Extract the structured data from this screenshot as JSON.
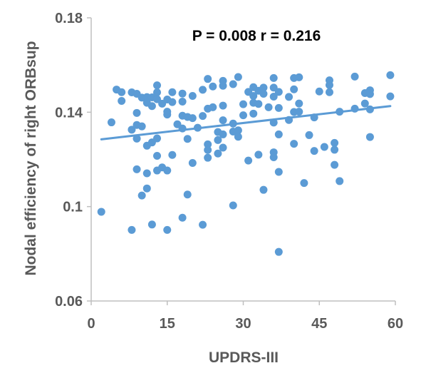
{
  "chart_data": {
    "type": "scatter",
    "title": "",
    "annotation": "P = 0.008 r = 0.216",
    "xlabel": "UPDRS-III",
    "ylabel": "Nodal efficiency of right ORBsup",
    "xlim": [
      0,
      60
    ],
    "ylim": [
      0.06,
      0.18
    ],
    "x_ticks": [
      0,
      15,
      30,
      45,
      60
    ],
    "y_ticks": [
      0.06,
      0.1,
      0.14,
      0.18
    ],
    "x_tick_labels": [
      "0",
      "15",
      "30",
      "45",
      "60"
    ],
    "y_tick_labels": [
      "0.06",
      "0.1",
      "0.14",
      "0.18"
    ],
    "grid": false,
    "marker_color": "#5B9BD5",
    "trendline": {
      "x": [
        2,
        59
      ],
      "y": [
        0.1285,
        0.1426
      ],
      "color": "#5B9BD5"
    },
    "points": [
      [
        2,
        0.0978
      ],
      [
        4,
        0.1357
      ],
      [
        5,
        0.1496
      ],
      [
        6,
        0.1485
      ],
      [
        6,
        0.1448
      ],
      [
        8,
        0.1484
      ],
      [
        8,
        0.1326
      ],
      [
        8,
        0.0901
      ],
      [
        9,
        0.1478
      ],
      [
        9,
        0.1397
      ],
      [
        9,
        0.1346
      ],
      [
        9,
        0.1288
      ],
      [
        9,
        0.1158
      ],
      [
        10,
        0.1462
      ],
      [
        10,
        0.134
      ],
      [
        10,
        0.1047
      ],
      [
        11,
        0.1464
      ],
      [
        11,
        0.144
      ],
      [
        11,
        0.1258
      ],
      [
        11,
        0.1141
      ],
      [
        11,
        0.1077
      ],
      [
        12,
        0.1463
      ],
      [
        12,
        0.1426
      ],
      [
        12,
        0.1272
      ],
      [
        12,
        0.0924
      ],
      [
        13,
        0.1514
      ],
      [
        13,
        0.1484
      ],
      [
        13,
        0.1455
      ],
      [
        13,
        0.1289
      ],
      [
        13,
        0.1215
      ],
      [
        13,
        0.1153
      ],
      [
        14,
        0.1436
      ],
      [
        14,
        0.1166
      ],
      [
        15,
        0.1454
      ],
      [
        15,
        0.1402
      ],
      [
        15,
        0.139
      ],
      [
        15,
        0.1153
      ],
      [
        15,
        0.0901
      ],
      [
        16,
        0.1485
      ],
      [
        16,
        0.1443
      ],
      [
        16,
        0.1219
      ],
      [
        17,
        0.1349
      ],
      [
        18,
        0.1479
      ],
      [
        18,
        0.1445
      ],
      [
        18,
        0.1385
      ],
      [
        18,
        0.1331
      ],
      [
        18,
        0.0953
      ],
      [
        19,
        0.138
      ],
      [
        19,
        0.1287
      ],
      [
        19,
        0.1051
      ],
      [
        20,
        0.1469
      ],
      [
        20,
        0.1375
      ],
      [
        20,
        0.1185
      ],
      [
        21,
        0.1334
      ],
      [
        22,
        0.1495
      ],
      [
        22,
        0.1384
      ],
      [
        22,
        0.0923
      ],
      [
        23,
        0.1541
      ],
      [
        23,
        0.1415
      ],
      [
        23,
        0.1264
      ],
      [
        23,
        0.124
      ],
      [
        23,
        0.1207
      ],
      [
        24,
        0.1509
      ],
      [
        24,
        0.1421
      ],
      [
        25,
        0.1316
      ],
      [
        25,
        0.1282
      ],
      [
        25,
        0.1225
      ],
      [
        26,
        0.1533
      ],
      [
        26,
        0.1512
      ],
      [
        26,
        0.1428
      ],
      [
        26,
        0.1366
      ],
      [
        26,
        0.1306
      ],
      [
        26,
        0.125
      ],
      [
        28,
        0.1519
      ],
      [
        28,
        0.1352
      ],
      [
        28,
        0.1318
      ],
      [
        28,
        0.1005
      ],
      [
        29,
        0.1549
      ],
      [
        29,
        0.1323
      ],
      [
        29,
        0.1296
      ],
      [
        30,
        0.1434
      ],
      [
        30,
        0.1387
      ],
      [
        31,
        0.1486
      ],
      [
        31,
        0.1195
      ],
      [
        32,
        0.1506
      ],
      [
        32,
        0.1469
      ],
      [
        32,
        0.144
      ],
      [
        32,
        0.1394
      ],
      [
        33,
        0.1491
      ],
      [
        33,
        0.1435
      ],
      [
        33,
        0.122
      ],
      [
        34,
        0.1504
      ],
      [
        34,
        0.1478
      ],
      [
        34,
        0.1071
      ],
      [
        35,
        0.1421
      ],
      [
        36,
        0.1545
      ],
      [
        36,
        0.1504
      ],
      [
        36,
        0.1466
      ],
      [
        36,
        0.1356
      ],
      [
        36,
        0.123
      ],
      [
        36,
        0.1209
      ],
      [
        37,
        0.1486
      ],
      [
        37,
        0.1418
      ],
      [
        37,
        0.1306
      ],
      [
        37,
        0.1147
      ],
      [
        37,
        0.0808
      ],
      [
        39,
        0.1465
      ],
      [
        39,
        0.1367
      ],
      [
        40,
        0.1545
      ],
      [
        40,
        0.1497
      ],
      [
        40,
        0.1401
      ],
      [
        40,
        0.1266
      ],
      [
        41,
        0.1548
      ],
      [
        41,
        0.1437
      ],
      [
        41,
        0.1402
      ],
      [
        42,
        0.11
      ],
      [
        43,
        0.1303
      ],
      [
        44,
        0.1378
      ],
      [
        44,
        0.1236
      ],
      [
        45,
        0.1488
      ],
      [
        46,
        0.1253
      ],
      [
        47,
        0.1535
      ],
      [
        47,
        0.1515
      ],
      [
        47,
        0.1485
      ],
      [
        48,
        0.127
      ],
      [
        48,
        0.1241
      ],
      [
        48,
        0.1177
      ],
      [
        49,
        0.1402
      ],
      [
        49,
        0.1108
      ],
      [
        52,
        0.1551
      ],
      [
        52,
        0.1415
      ],
      [
        54,
        0.1481
      ],
      [
        54,
        0.1437
      ],
      [
        55,
        0.1493
      ],
      [
        55,
        0.1477
      ],
      [
        55,
        0.1412
      ],
      [
        55,
        0.1295
      ],
      [
        59,
        0.1557
      ],
      [
        59,
        0.1467
      ]
    ]
  }
}
